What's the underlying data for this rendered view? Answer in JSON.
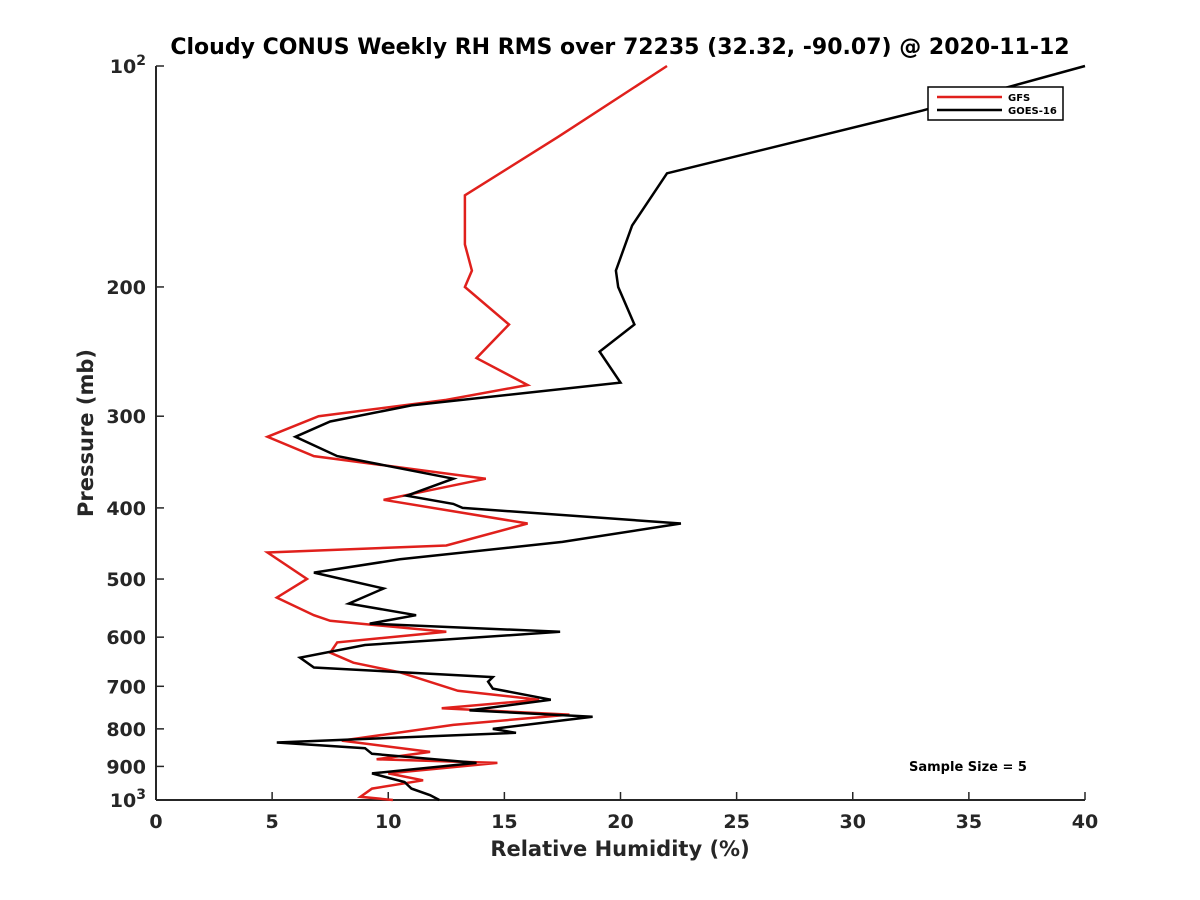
{
  "chart_data": {
    "type": "line",
    "title": "Cloudy CONUS Weekly RH RMS over 72235 (32.32, -90.07) @ 2020-11-12",
    "xlabel": "Relative Humidity (%)",
    "ylabel": "Pressure (mb)",
    "xlim": [
      0,
      40
    ],
    "ylim": [
      100,
      1000
    ],
    "yscale": "log",
    "yreversed": false,
    "x_ticks": [
      "0",
      "5",
      "10",
      "15",
      "20",
      "25",
      "30",
      "35",
      "40"
    ],
    "y_ticks": [
      {
        "value": 100,
        "base": "10",
        "exp": "2"
      },
      {
        "value": 200,
        "label": "200"
      },
      {
        "value": 300,
        "label": "300"
      },
      {
        "value": 400,
        "label": "400"
      },
      {
        "value": 500,
        "label": "500"
      },
      {
        "value": 600,
        "label": "600"
      },
      {
        "value": 700,
        "label": "700"
      },
      {
        "value": 800,
        "label": "800"
      },
      {
        "value": 900,
        "label": "900"
      },
      {
        "value": 1000,
        "base": "10",
        "exp": "3"
      }
    ],
    "legend_position": "top-right",
    "annotation": "Sample Size = 5",
    "series": [
      {
        "name": "GFS",
        "color": "#e0201c",
        "points": [
          [
            22.0,
            100
          ],
          [
            17.3,
            125
          ],
          [
            13.3,
            150
          ],
          [
            13.3,
            175
          ],
          [
            13.6,
            190
          ],
          [
            13.3,
            200
          ],
          [
            15.2,
            225
          ],
          [
            13.8,
            250
          ],
          [
            16.0,
            272
          ],
          [
            12.5,
            285
          ],
          [
            7.0,
            300
          ],
          [
            4.8,
            320
          ],
          [
            6.8,
            340
          ],
          [
            14.2,
            365
          ],
          [
            9.8,
            390
          ],
          [
            16.0,
            420
          ],
          [
            12.5,
            450
          ],
          [
            4.8,
            460
          ],
          [
            6.5,
            500
          ],
          [
            5.2,
            530
          ],
          [
            6.8,
            560
          ],
          [
            7.5,
            570
          ],
          [
            12.5,
            590
          ],
          [
            7.8,
            610
          ],
          [
            7.5,
            630
          ],
          [
            8.5,
            650
          ],
          [
            10.5,
            670
          ],
          [
            13.0,
            710
          ],
          [
            16.5,
            730
          ],
          [
            12.3,
            750
          ],
          [
            17.8,
            765
          ],
          [
            12.8,
            790
          ],
          [
            8.0,
            830
          ],
          [
            11.8,
            860
          ],
          [
            9.5,
            880
          ],
          [
            14.7,
            890
          ],
          [
            10.0,
            920
          ],
          [
            11.5,
            940
          ],
          [
            9.3,
            965
          ],
          [
            8.8,
            990
          ],
          [
            10.2,
            1000
          ]
        ]
      },
      {
        "name": "GOES-16",
        "color": "#000000",
        "points": [
          [
            40.0,
            100
          ],
          [
            33.0,
            115
          ],
          [
            22.0,
            140
          ],
          [
            20.5,
            165
          ],
          [
            19.8,
            190
          ],
          [
            19.9,
            200
          ],
          [
            20.6,
            225
          ],
          [
            19.1,
            245
          ],
          [
            20.0,
            270
          ],
          [
            11.0,
            290
          ],
          [
            7.5,
            305
          ],
          [
            6.0,
            320
          ],
          [
            7.8,
            340
          ],
          [
            12.8,
            365
          ],
          [
            10.8,
            385
          ],
          [
            12.8,
            395
          ],
          [
            13.2,
            400
          ],
          [
            22.6,
            420
          ],
          [
            17.5,
            445
          ],
          [
            10.5,
            470
          ],
          [
            6.8,
            490
          ],
          [
            9.8,
            515
          ],
          [
            8.3,
            540
          ],
          [
            11.2,
            560
          ],
          [
            9.2,
            575
          ],
          [
            17.4,
            590
          ],
          [
            9.0,
            615
          ],
          [
            6.2,
            640
          ],
          [
            6.8,
            660
          ],
          [
            14.5,
            680
          ],
          [
            14.3,
            690
          ],
          [
            14.5,
            705
          ],
          [
            17.0,
            730
          ],
          [
            13.5,
            755
          ],
          [
            18.8,
            770
          ],
          [
            14.5,
            800
          ],
          [
            15.5,
            810
          ],
          [
            5.2,
            835
          ],
          [
            9.0,
            850
          ],
          [
            9.3,
            865
          ],
          [
            13.8,
            890
          ],
          [
            9.3,
            920
          ],
          [
            10.7,
            945
          ],
          [
            11.0,
            965
          ],
          [
            11.8,
            985
          ],
          [
            12.2,
            1000
          ]
        ]
      }
    ]
  }
}
